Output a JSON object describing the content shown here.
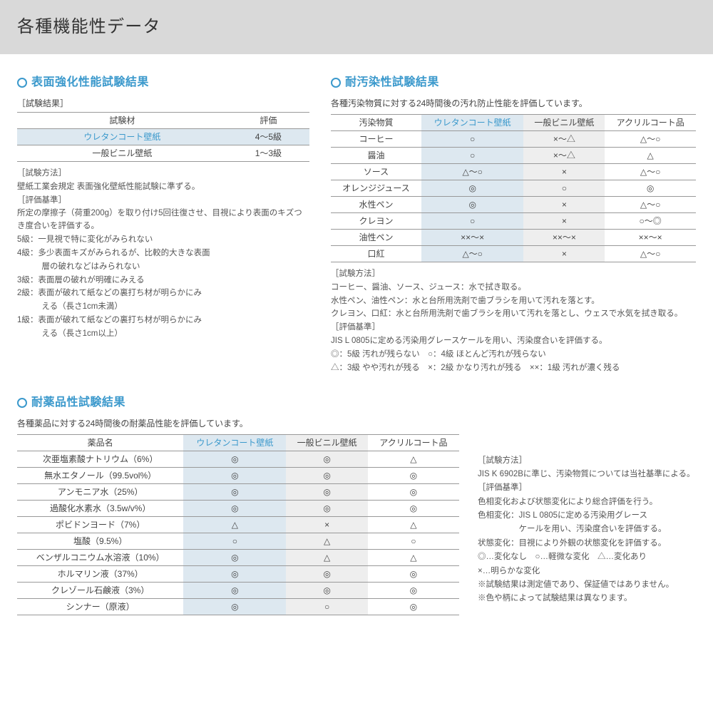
{
  "page_title": "各種機能性データ",
  "accent_color": "#3b99cc",
  "highlight_bg": "#dde8f0",
  "gray_bg": "#eeeeee",
  "section1": {
    "title": "表面強化性能試験結果",
    "sub_label": "［試験結果］",
    "headers": [
      "試験材",
      "評価"
    ],
    "rows": [
      {
        "name": "ウレタンコート壁紙",
        "val": "4～5級",
        "name_blue": true,
        "hl": true
      },
      {
        "name": "一般ビニル壁紙",
        "val": "1～3級",
        "name_blue": false,
        "hl": false
      }
    ],
    "notes": [
      "［試験方法］",
      "壁紙工業会規定 表面強化壁紙性能試験に準ずる。",
      "［評価基準］",
      "所定の摩擦子（荷重200g）を取り付け5回往復させ、目視により表面のキズつき度合いを評価する。",
      "5級：一見視で特に変化がみられない",
      "4級：多少表面キズがみられるが、比較的大きな表面",
      "　　　層の破れなどはみられない",
      "3級：表面層の破れが明確にみえる",
      "2級：表面が破れて紙などの裏打ち材が明らかにみ",
      "　　　える（長さ1cm未満）",
      "1級：表面が破れて紙などの裏打ち材が明らかにみ",
      "　　　える（長さ1cm以上）"
    ]
  },
  "section2": {
    "title": "耐汚染性試験結果",
    "desc": "各種汚染物質に対する24時間後の汚れ防止性能を評価しています。",
    "headers": [
      "汚染物質",
      "ウレタンコート壁紙",
      "一般ビニル壁紙",
      "アクリルコート品"
    ],
    "rows": [
      [
        "コーヒー",
        "○",
        "×～△",
        "△～○"
      ],
      [
        "醤油",
        "○",
        "×～△",
        "△"
      ],
      [
        "ソース",
        "△～○",
        "×",
        "△～○"
      ],
      [
        "オレンジジュース",
        "◎",
        "○",
        "◎"
      ],
      [
        "水性ペン",
        "◎",
        "×",
        "△～○"
      ],
      [
        "クレヨン",
        "○",
        "×",
        "○～◎"
      ],
      [
        "油性ペン",
        "××～×",
        "××～×",
        "××～×"
      ],
      [
        "口紅",
        "△～○",
        "×",
        "△～○"
      ]
    ],
    "notes": [
      "［試験方法］",
      "コーヒー、醤油、ソース、ジュース：水で拭き取る。",
      "水性ペン、油性ペン：水と台所用洗剤で歯ブラシを用いて汚れを落とす。",
      "クレヨン、口紅：水と台所用洗剤で歯ブラシを用いて汚れを落とし、ウェスで水気を拭き取る。",
      "［評価基準］",
      "JIS L 0805に定める汚染用グレースケールを用い、汚染度合いを評価する。",
      "◎：5級 汚れが残らない　○：4級 ほとんど汚れが残らない",
      "△：3級 やや汚れが残る　×：2級 かなり汚れが残る　××：1級 汚れが濃く残る"
    ]
  },
  "section3": {
    "title": "耐薬品性試験結果",
    "desc": "各種薬品に対する24時間後の耐薬品性能を評価しています。",
    "headers": [
      "薬品名",
      "ウレタンコート壁紙",
      "一般ビニル壁紙",
      "アクリルコート品"
    ],
    "rows": [
      [
        "次亜塩素酸ナトリウム（6%）",
        "◎",
        "◎",
        "△"
      ],
      [
        "無水エタノール（99.5vol%）",
        "◎",
        "◎",
        "◎"
      ],
      [
        "アンモニア水（25%）",
        "◎",
        "◎",
        "◎"
      ],
      [
        "過酸化水素水（3.5w/v%）",
        "◎",
        "◎",
        "◎"
      ],
      [
        "ポビドンヨード（7%）",
        "△",
        "×",
        "△"
      ],
      [
        "塩酸（9.5%）",
        "○",
        "△",
        "○"
      ],
      [
        "ベンザルコニウム水溶液（10%）",
        "◎",
        "△",
        "△"
      ],
      [
        "ホルマリン液（37%）",
        "◎",
        "◎",
        "◎"
      ],
      [
        "クレゾール石鹸液（3%）",
        "◎",
        "◎",
        "◎"
      ],
      [
        "シンナー（原液）",
        "◎",
        "○",
        "◎"
      ]
    ],
    "right_notes": [
      "［試験方法］",
      "JIS K 6902Bに準じ、汚染物質については当社基準による。",
      "［評価基準］",
      "色相変化および状態変化により総合評価を行う。",
      "色相変化：JIS L 0805に定める汚染用グレース",
      "　　　　　ケールを用い、汚染度合いを評価する。",
      "状態変化：目視により外観の状態変化を評価する。",
      "◎…変化なし　○…軽微な変化　△…変化あり",
      "×…明らかな変化",
      "※試験結果は測定値であり、保証値ではありません。",
      "※色や柄によって試験結果は異なります。"
    ]
  }
}
